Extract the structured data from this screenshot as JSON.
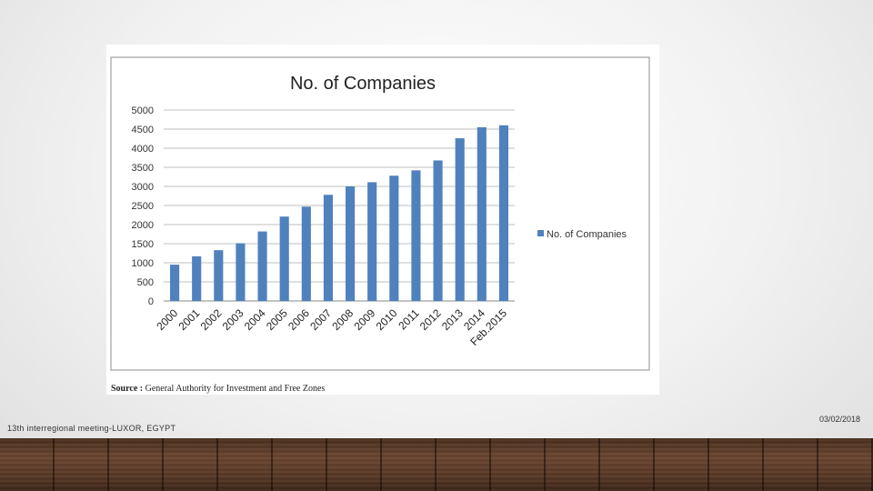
{
  "footer": {
    "left_text": "13th interregional meeting-LUXOR, EGYPT",
    "date": "03/02/2018"
  },
  "chart_data": {
    "type": "bar",
    "title": "No. of Companies",
    "categories": [
      "2000",
      "2001",
      "2002",
      "2003",
      "2004",
      "2005",
      "2006",
      "2007",
      "2008",
      "2009",
      "2010",
      "2011",
      "2012",
      "2013",
      "2014",
      "Feb.2015"
    ],
    "series": [
      {
        "name": "No. of Companies",
        "color": "#4f81bd",
        "values": [
          950,
          1170,
          1330,
          1510,
          1820,
          2210,
          2470,
          2780,
          3000,
          3110,
          3280,
          3420,
          3680,
          4260,
          4550,
          4600
        ]
      }
    ],
    "ylim": [
      0,
      5000
    ],
    "yticks": [
      0,
      500,
      1000,
      1500,
      2000,
      2500,
      3000,
      3500,
      4000,
      4500,
      5000
    ],
    "grid": true,
    "legend_position": "right",
    "source_label": "Source :",
    "source_text": "General Authority for Investment and Free Zones"
  }
}
